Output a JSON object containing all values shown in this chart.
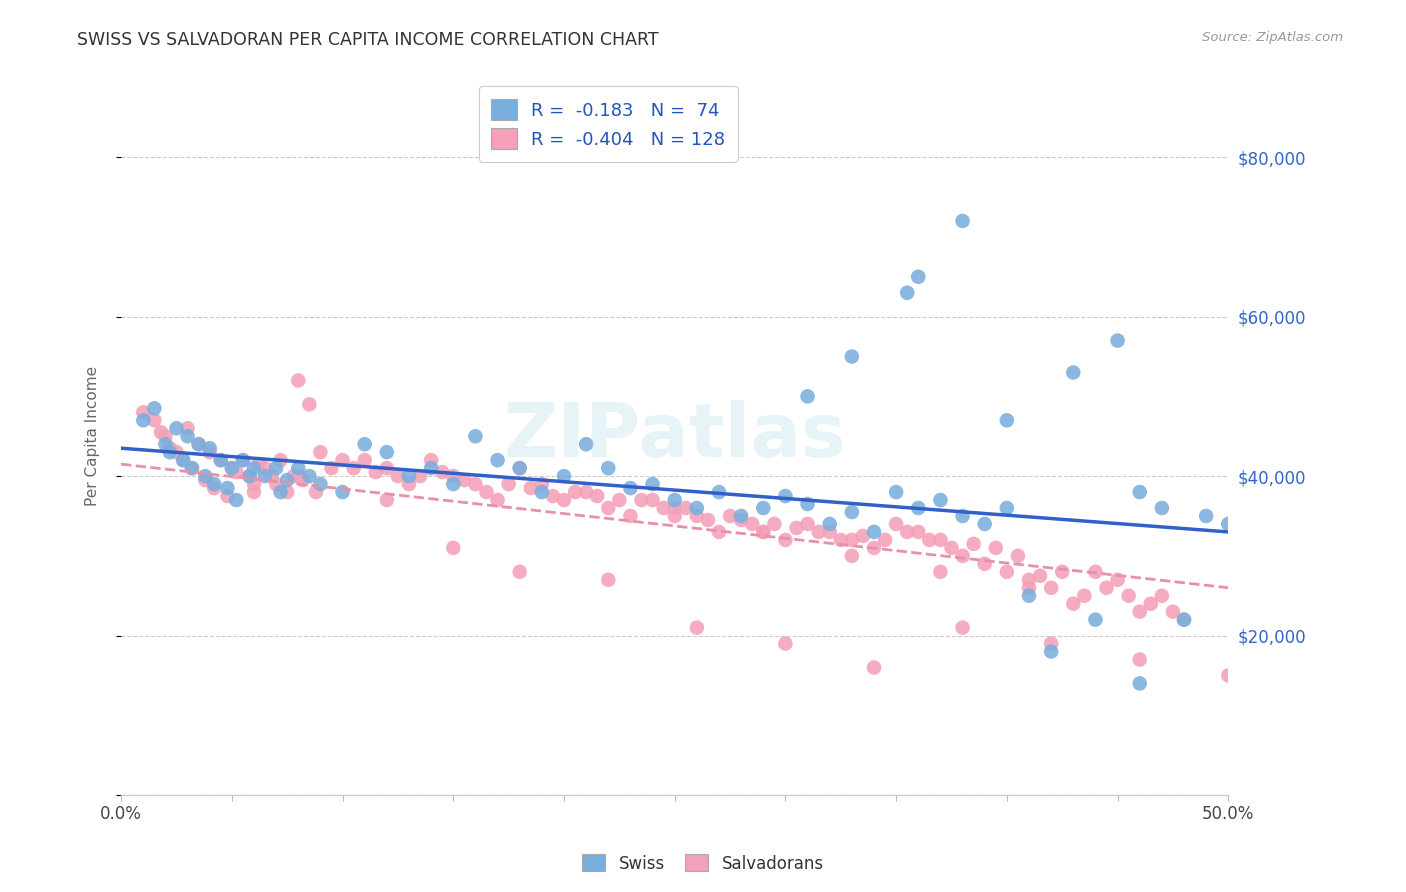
{
  "title": "SWISS VS SALVADORAN PER CAPITA INCOME CORRELATION CHART",
  "source": "Source: ZipAtlas.com",
  "ylabel": "Per Capita Income",
  "xlim": [
    0.0,
    0.5
  ],
  "ylim": [
    0,
    90000
  ],
  "yticks": [
    0,
    20000,
    40000,
    60000,
    80000
  ],
  "blue_color": "#7aaedd",
  "pink_color": "#f4a0b8",
  "blue_line_color": "#3060c8",
  "pink_line_color": "#e890a8",
  "watermark": "ZIPatlas",
  "legend_R_blue": "-0.183",
  "legend_N_blue": "74",
  "legend_R_pink": "-0.404",
  "legend_N_pink": "128",
  "blue_line_x0": 0.0,
  "blue_line_y0": 43500,
  "blue_line_x1": 0.5,
  "blue_line_y1": 33000,
  "pink_line_x0": 0.0,
  "pink_line_y0": 41500,
  "pink_line_x1": 0.5,
  "pink_line_y1": 26000,
  "swiss_x": [
    0.01,
    0.015,
    0.02,
    0.022,
    0.025,
    0.028,
    0.03,
    0.032,
    0.035,
    0.038,
    0.04,
    0.042,
    0.045,
    0.048,
    0.05,
    0.052,
    0.055,
    0.058,
    0.06,
    0.065,
    0.07,
    0.072,
    0.075,
    0.08,
    0.085,
    0.09,
    0.1,
    0.11,
    0.12,
    0.13,
    0.14,
    0.15,
    0.16,
    0.17,
    0.18,
    0.19,
    0.2,
    0.21,
    0.22,
    0.23,
    0.24,
    0.25,
    0.26,
    0.27,
    0.28,
    0.29,
    0.3,
    0.31,
    0.32,
    0.33,
    0.34,
    0.35,
    0.36,
    0.37,
    0.38,
    0.39,
    0.4,
    0.31,
    0.33,
    0.355,
    0.36,
    0.38,
    0.4,
    0.43,
    0.45,
    0.46,
    0.47,
    0.48,
    0.49,
    0.5,
    0.41,
    0.42,
    0.44,
    0.46
  ],
  "swiss_y": [
    47000,
    48500,
    44000,
    43000,
    46000,
    42000,
    45000,
    41000,
    44000,
    40000,
    43500,
    39000,
    42000,
    38500,
    41000,
    37000,
    42000,
    40000,
    41000,
    40000,
    41000,
    38000,
    39500,
    41000,
    40000,
    39000,
    38000,
    44000,
    43000,
    40000,
    41000,
    39000,
    45000,
    42000,
    41000,
    38000,
    40000,
    44000,
    41000,
    38500,
    39000,
    37000,
    36000,
    38000,
    35000,
    36000,
    37500,
    36500,
    34000,
    35500,
    33000,
    38000,
    36000,
    37000,
    35000,
    34000,
    36000,
    50000,
    55000,
    63000,
    65000,
    72000,
    47000,
    53000,
    57000,
    38000,
    36000,
    22000,
    35000,
    34000,
    25000,
    18000,
    22000,
    14000
  ],
  "salv_x": [
    0.01,
    0.015,
    0.018,
    0.02,
    0.022,
    0.025,
    0.028,
    0.03,
    0.032,
    0.035,
    0.038,
    0.04,
    0.042,
    0.045,
    0.048,
    0.05,
    0.052,
    0.055,
    0.058,
    0.06,
    0.062,
    0.065,
    0.068,
    0.07,
    0.072,
    0.075,
    0.078,
    0.08,
    0.082,
    0.085,
    0.088,
    0.09,
    0.095,
    0.1,
    0.105,
    0.11,
    0.115,
    0.12,
    0.125,
    0.13,
    0.135,
    0.14,
    0.145,
    0.15,
    0.155,
    0.16,
    0.165,
    0.17,
    0.175,
    0.18,
    0.185,
    0.19,
    0.195,
    0.2,
    0.205,
    0.21,
    0.215,
    0.22,
    0.225,
    0.23,
    0.235,
    0.24,
    0.245,
    0.25,
    0.255,
    0.26,
    0.265,
    0.27,
    0.275,
    0.28,
    0.285,
    0.29,
    0.295,
    0.3,
    0.305,
    0.31,
    0.315,
    0.32,
    0.325,
    0.33,
    0.335,
    0.34,
    0.345,
    0.35,
    0.355,
    0.36,
    0.365,
    0.37,
    0.375,
    0.38,
    0.385,
    0.39,
    0.395,
    0.4,
    0.405,
    0.41,
    0.415,
    0.42,
    0.425,
    0.43,
    0.435,
    0.44,
    0.445,
    0.45,
    0.455,
    0.46,
    0.465,
    0.47,
    0.475,
    0.48,
    0.06,
    0.08,
    0.12,
    0.15,
    0.18,
    0.22,
    0.26,
    0.3,
    0.34,
    0.38,
    0.42,
    0.46,
    0.5,
    0.25,
    0.29,
    0.33,
    0.37,
    0.41
  ],
  "salv_y": [
    48000,
    47000,
    45500,
    45000,
    43500,
    43000,
    42000,
    46000,
    41000,
    44000,
    39500,
    43000,
    38500,
    42000,
    37500,
    41000,
    40500,
    42000,
    40000,
    39000,
    41500,
    41000,
    40000,
    39000,
    42000,
    38000,
    40000,
    52000,
    39500,
    49000,
    38000,
    43000,
    41000,
    42000,
    41000,
    42000,
    40500,
    41000,
    40000,
    39000,
    40000,
    42000,
    40500,
    40000,
    39500,
    39000,
    38000,
    37000,
    39000,
    41000,
    38500,
    39000,
    37500,
    37000,
    38000,
    38000,
    37500,
    36000,
    37000,
    35000,
    37000,
    37000,
    36000,
    36000,
    36000,
    35000,
    34500,
    33000,
    35000,
    34500,
    34000,
    33000,
    34000,
    32000,
    33500,
    34000,
    33000,
    33000,
    32000,
    32000,
    32500,
    31000,
    32000,
    34000,
    33000,
    33000,
    32000,
    32000,
    31000,
    30000,
    31500,
    29000,
    31000,
    28000,
    30000,
    27000,
    27500,
    26000,
    28000,
    24000,
    25000,
    28000,
    26000,
    27000,
    25000,
    23000,
    24000,
    25000,
    23000,
    22000,
    38000,
    40000,
    37000,
    31000,
    28000,
    27000,
    21000,
    19000,
    16000,
    21000,
    19000,
    17000,
    15000,
    35000,
    33000,
    30000,
    28000,
    26000
  ]
}
